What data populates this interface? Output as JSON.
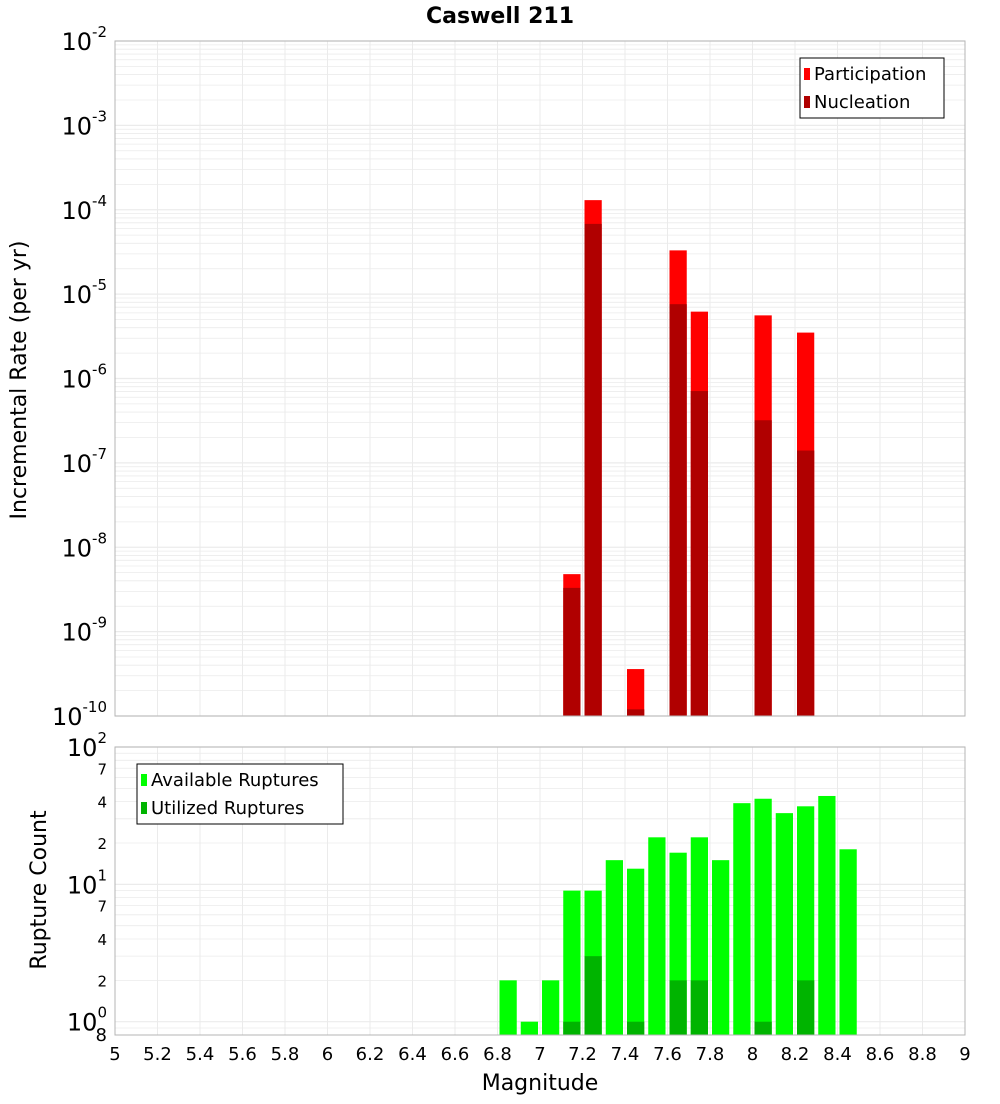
{
  "colors": {
    "participation": "#ff0000",
    "nucleation": "#b00000",
    "available": "#00ff00",
    "utilized": "#00b400",
    "grid": "#ebebeb",
    "frame": "#b4b4b4"
  },
  "chart_data": {
    "type": "bar",
    "title": "Caswell 211",
    "xlabel": "Magnitude",
    "xlim": [
      5,
      9
    ],
    "x_ticks": [
      "5",
      "5.2",
      "5.4",
      "5.6",
      "5.8",
      "6",
      "6.2",
      "6.4",
      "6.6",
      "6.8",
      "7",
      "7.2",
      "7.4",
      "7.6",
      "7.8",
      "8",
      "8.2",
      "8.4",
      "8.6",
      "8.8",
      "9"
    ],
    "grid": true,
    "panels": [
      {
        "ylabel": "Incremental Rate (per yr)",
        "yscale": "log",
        "ylim": [
          1e-10,
          0.01
        ],
        "y_tick_exponents": [
          "-10",
          "-9",
          "-8",
          "-7",
          "-6",
          "-5",
          "-4",
          "-3",
          "-2"
        ],
        "legend_position": "top-right",
        "series": [
          {
            "name": "Participation",
            "x": [
              7.15,
              7.25,
              7.45,
              7.65,
              7.75,
              8.05,
              8.25
            ],
            "values": [
              4.8e-09,
              0.00013,
              3.6e-10,
              3.3e-05,
              6.2e-06,
              5.6e-06,
              3.5e-06
            ]
          },
          {
            "name": "Nucleation",
            "x": [
              7.15,
              7.25,
              7.45,
              7.65,
              7.75,
              8.05,
              8.25
            ],
            "values": [
              3.3e-09,
              6.8e-05,
              1.2e-10,
              7.6e-06,
              7.1e-07,
              3.2e-07,
              1.4e-07
            ]
          }
        ]
      },
      {
        "ylabel": "Rupture Count",
        "yscale": "log",
        "ylim": [
          0.8,
          100
        ],
        "y_tick_exponents": [
          "0",
          "1",
          "2"
        ],
        "y_minor_labels": [
          "2",
          "4",
          "7",
          "2",
          "4",
          "7",
          "8"
        ],
        "legend_position": "top-left",
        "series": [
          {
            "name": "Available Ruptures",
            "x": [
              6.85,
              6.95,
              7.05,
              7.15,
              7.25,
              7.35,
              7.45,
              7.55,
              7.65,
              7.75,
              7.85,
              7.95,
              8.05,
              8.15,
              8.25,
              8.35,
              8.45
            ],
            "values": [
              2,
              1,
              2,
              9,
              9,
              15,
              13,
              22,
              17,
              22,
              15,
              39,
              42,
              33,
              37,
              44,
              18
            ]
          },
          {
            "name": "Utilized Ruptures",
            "x": [
              7.15,
              7.25,
              7.45,
              7.65,
              7.75,
              8.05,
              8.25
            ],
            "values": [
              1,
              3,
              1,
              2,
              2,
              1,
              2
            ]
          }
        ]
      }
    ]
  }
}
